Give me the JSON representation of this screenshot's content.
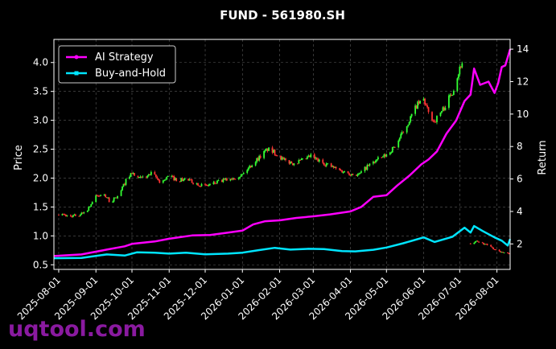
{
  "chart_data": {
    "type": "line",
    "title": "FUND - 561980.SH",
    "xlabel": "",
    "ylabel": "Price",
    "y2label": "Return",
    "ylim": [
      0.42,
      4.4
    ],
    "y2lim": [
      0.43,
      14.6
    ],
    "yticks": [
      0.5,
      1.0,
      1.5,
      2.0,
      2.5,
      3.0,
      3.5,
      4.0
    ],
    "yticklabels": [
      "0.5",
      "1.0",
      "1.5",
      "2.0",
      "2.5",
      "3.0",
      "3.5",
      "4.0"
    ],
    "y2ticks": [
      2,
      4,
      6,
      8,
      10,
      12,
      14
    ],
    "y2ticklabels": [
      "2",
      "4",
      "6",
      "8",
      "10",
      "12",
      "14"
    ],
    "x_range": [
      "2025-07-28",
      "2026-08-12"
    ],
    "xticks": [
      "2025-08-01",
      "2025-09-01",
      "2025-10-01",
      "2025-11-01",
      "2025-12-01",
      "2026-01-01",
      "2026-02-01",
      "2026-03-01",
      "2026-04-01",
      "2026-05-01",
      "2026-06-01",
      "2026-07-01",
      "2026-08-01"
    ],
    "grid": true,
    "legend": "top-left",
    "candles": {
      "up_color": "#33ff33",
      "down_color": "#ff3333",
      "anchors": [
        [
          "2025-08-01",
          1.38
        ],
        [
          "2025-08-10",
          1.34
        ],
        [
          "2025-08-18",
          1.36
        ],
        [
          "2025-08-25",
          1.46
        ],
        [
          "2025-09-01",
          1.68
        ],
        [
          "2025-09-08",
          1.72
        ],
        [
          "2025-09-13",
          1.58
        ],
        [
          "2025-09-20",
          1.7
        ],
        [
          "2025-09-26",
          1.96
        ],
        [
          "2025-10-01",
          2.1
        ],
        [
          "2025-10-05",
          1.98
        ],
        [
          "2025-10-12",
          2.02
        ],
        [
          "2025-10-18",
          2.08
        ],
        [
          "2025-10-25",
          1.92
        ],
        [
          "2025-11-01",
          2.04
        ],
        [
          "2025-11-08",
          1.96
        ],
        [
          "2025-11-15",
          1.98
        ],
        [
          "2025-11-22",
          1.92
        ],
        [
          "2025-12-01",
          1.86
        ],
        [
          "2025-12-10",
          1.92
        ],
        [
          "2025-12-20",
          1.98
        ],
        [
          "2026-01-01",
          2.06
        ],
        [
          "2026-01-08",
          2.22
        ],
        [
          "2026-01-15",
          2.36
        ],
        [
          "2026-01-22",
          2.5
        ],
        [
          "2026-01-28",
          2.44
        ],
        [
          "2026-02-05",
          2.3
        ],
        [
          "2026-02-12",
          2.26
        ],
        [
          "2026-02-20",
          2.3
        ],
        [
          "2026-02-27",
          2.38
        ],
        [
          "2026-03-05",
          2.3
        ],
        [
          "2026-03-12",
          2.24
        ],
        [
          "2026-03-20",
          2.16
        ],
        [
          "2026-03-28",
          2.1
        ],
        [
          "2026-04-05",
          2.06
        ],
        [
          "2026-04-08",
          2.06
        ],
        [
          "2026-04-15",
          2.2
        ],
        [
          "2026-04-22",
          2.3
        ],
        [
          "2026-05-01",
          2.4
        ],
        [
          "2026-05-08",
          2.55
        ],
        [
          "2026-05-14",
          2.76
        ],
        [
          "2026-05-20",
          3.0
        ],
        [
          "2026-05-26",
          3.25
        ],
        [
          "2026-06-01",
          3.36
        ],
        [
          "2026-06-05",
          3.12
        ],
        [
          "2026-06-10",
          2.98
        ],
        [
          "2026-06-18",
          3.22
        ],
        [
          "2026-06-25",
          3.5
        ],
        [
          "2026-07-02",
          3.96
        ],
        [
          "2026-07-06",
          4.12
        ],
        [
          "2026-07-08",
          null
        ],
        [
          "2026-07-10",
          0.86
        ],
        [
          "2026-07-15",
          0.9
        ],
        [
          "2026-07-22",
          0.86
        ],
        [
          "2026-07-29",
          0.78
        ],
        [
          "2026-08-05",
          0.72
        ],
        [
          "2026-08-12",
          0.68
        ]
      ]
    },
    "series": [
      {
        "name": "AI Strategy",
        "axis": "right",
        "color": "#ff00ff",
        "marker": "circle",
        "points": [
          [
            "2025-07-28",
            1.25
          ],
          [
            "2025-08-20",
            1.35
          ],
          [
            "2025-09-10",
            1.65
          ],
          [
            "2025-09-25",
            1.85
          ],
          [
            "2025-10-01",
            2.0
          ],
          [
            "2025-10-20",
            2.15
          ],
          [
            "2025-11-01",
            2.32
          ],
          [
            "2025-11-20",
            2.52
          ],
          [
            "2025-12-05",
            2.55
          ],
          [
            "2025-12-20",
            2.7
          ],
          [
            "2026-01-01",
            2.82
          ],
          [
            "2026-01-10",
            3.2
          ],
          [
            "2026-01-20",
            3.4
          ],
          [
            "2026-02-01",
            3.45
          ],
          [
            "2026-02-15",
            3.6
          ],
          [
            "2026-03-01",
            3.7
          ],
          [
            "2026-03-15",
            3.82
          ],
          [
            "2026-04-01",
            4.0
          ],
          [
            "2026-04-10",
            4.28
          ],
          [
            "2026-04-20",
            4.9
          ],
          [
            "2026-05-01",
            5.0
          ],
          [
            "2026-05-10",
            5.6
          ],
          [
            "2026-05-20",
            6.2
          ],
          [
            "2026-05-30",
            6.9
          ],
          [
            "2026-06-05",
            7.2
          ],
          [
            "2026-06-12",
            7.7
          ],
          [
            "2026-06-20",
            8.8
          ],
          [
            "2026-06-28",
            9.6
          ],
          [
            "2026-07-05",
            10.8
          ],
          [
            "2026-07-10",
            11.2
          ],
          [
            "2026-07-13",
            12.8
          ],
          [
            "2026-07-18",
            11.8
          ],
          [
            "2026-07-25",
            12.0
          ],
          [
            "2026-07-30",
            11.3
          ],
          [
            "2026-08-02",
            11.9
          ],
          [
            "2026-08-05",
            12.9
          ],
          [
            "2026-08-08",
            13.0
          ],
          [
            "2026-08-12",
            14.0
          ]
        ]
      },
      {
        "name": "Buy-and-Hold",
        "axis": "right",
        "color": "#00e5ff",
        "marker": "square",
        "points": [
          [
            "2025-07-28",
            1.12
          ],
          [
            "2025-08-20",
            1.14
          ],
          [
            "2025-09-10",
            1.35
          ],
          [
            "2025-09-25",
            1.28
          ],
          [
            "2025-10-05",
            1.48
          ],
          [
            "2025-10-20",
            1.46
          ],
          [
            "2025-11-01",
            1.4
          ],
          [
            "2025-11-15",
            1.46
          ],
          [
            "2025-12-01",
            1.36
          ],
          [
            "2025-12-20",
            1.4
          ],
          [
            "2026-01-01",
            1.46
          ],
          [
            "2026-01-15",
            1.62
          ],
          [
            "2026-01-28",
            1.76
          ],
          [
            "2026-02-10",
            1.65
          ],
          [
            "2026-02-25",
            1.7
          ],
          [
            "2026-03-10",
            1.68
          ],
          [
            "2026-03-25",
            1.56
          ],
          [
            "2026-04-05",
            1.54
          ],
          [
            "2026-04-20",
            1.64
          ],
          [
            "2026-05-01",
            1.78
          ],
          [
            "2026-05-15",
            2.04
          ],
          [
            "2026-06-01",
            2.4
          ],
          [
            "2026-06-10",
            2.12
          ],
          [
            "2026-06-25",
            2.44
          ],
          [
            "2026-07-05",
            3.0
          ],
          [
            "2026-07-10",
            2.7
          ],
          [
            "2026-07-13",
            3.1
          ],
          [
            "2026-07-20",
            2.8
          ],
          [
            "2026-07-30",
            2.4
          ],
          [
            "2026-08-05",
            2.2
          ],
          [
            "2026-08-10",
            1.9
          ],
          [
            "2026-08-12",
            2.3
          ]
        ]
      }
    ]
  },
  "watermark": "uqtool.com"
}
